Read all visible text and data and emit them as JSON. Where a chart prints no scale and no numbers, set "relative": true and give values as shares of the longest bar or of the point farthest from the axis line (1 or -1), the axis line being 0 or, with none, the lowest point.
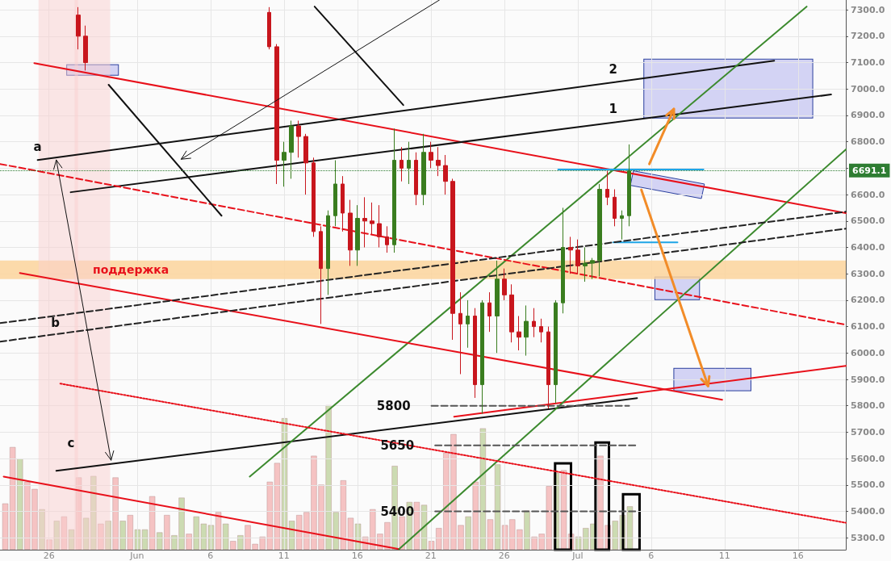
{
  "chart_data": [
    {
      "type": "candlestick",
      "x": [
        "--05-28T00:00",
        "--05-28T12:00",
        "--06-10T00:00",
        "--06-10T12:00",
        "--06-11T00:00",
        "--06-11T12:00",
        "--06-12T00:00",
        "--06-12T12:00",
        "--06-13T00:00",
        "--06-13T12:00",
        "--06-14T00:00",
        "--06-14T12:00",
        "--06-15T00:00",
        "--06-15T12:00",
        "--06-16T00:00",
        "--06-16T12:00",
        "--06-17T00:00",
        "--06-17T12:00",
        "--06-18T00:00",
        "--06-18T12:00",
        "--06-19T00:00",
        "--06-19T12:00",
        "--06-20T00:00",
        "--06-20T12:00",
        "--06-21T00:00",
        "--06-21T12:00",
        "--06-22T00:00",
        "--06-22T12:00",
        "--06-23T00:00",
        "--06-23T12:00",
        "--06-24T00:00",
        "--06-24T12:00",
        "--06-25T00:00",
        "--06-25T12:00",
        "--06-26T00:00",
        "--06-26T12:00",
        "--06-27T00:00",
        "--06-27T12:00",
        "--06-28T00:00",
        "--06-28T12:00",
        "--06-29T00:00",
        "--06-29T12:00",
        "--06-30T00:00",
        "--06-30T12:00",
        "--07-01T00:00",
        "--07-01T12:00",
        "--07-02T00:00",
        "--07-02T12:00",
        "--07-03T00:00",
        "--07-03T12:00",
        "--07-04T00:00",
        "--07-04T12:00"
      ],
      "ohlc": [
        [
          7280,
          7310,
          7150,
          7200
        ],
        [
          7200,
          7240,
          7070,
          7100
        ],
        [
          7290,
          7310,
          7150,
          7160
        ],
        [
          7160,
          7170,
          6640,
          6730
        ],
        [
          6730,
          6800,
          6630,
          6760
        ],
        [
          6760,
          6880,
          6660,
          6860
        ],
        [
          6860,
          6880,
          6740,
          6820
        ],
        [
          6820,
          6830,
          6600,
          6720
        ],
        [
          6720,
          6740,
          6440,
          6460
        ],
        [
          6460,
          6480,
          6110,
          6320
        ],
        [
          6320,
          6540,
          6220,
          6520
        ],
        [
          6520,
          6730,
          6480,
          6640
        ],
        [
          6640,
          6670,
          6460,
          6530
        ],
        [
          6530,
          6580,
          6330,
          6390
        ],
        [
          6390,
          6560,
          6330,
          6510
        ],
        [
          6510,
          6590,
          6400,
          6500
        ],
        [
          6500,
          6570,
          6450,
          6490
        ],
        [
          6490,
          6560,
          6400,
          6440
        ],
        [
          6440,
          6480,
          6380,
          6410
        ],
        [
          6410,
          6850,
          6380,
          6730
        ],
        [
          6730,
          6780,
          6650,
          6700
        ],
        [
          6700,
          6800,
          6640,
          6730
        ],
        [
          6730,
          6760,
          6560,
          6600
        ],
        [
          6600,
          6830,
          6560,
          6760
        ],
        [
          6760,
          6800,
          6700,
          6730
        ],
        [
          6730,
          6780,
          6670,
          6710
        ],
        [
          6710,
          6750,
          6600,
          6650
        ],
        [
          6650,
          6660,
          6050,
          6150
        ],
        [
          6150,
          6230,
          5920,
          6110
        ],
        [
          6110,
          6200,
          6020,
          6140
        ],
        [
          6140,
          6170,
          5830,
          5880
        ],
        [
          5880,
          6200,
          5770,
          6190
        ],
        [
          6190,
          6230,
          6080,
          6140
        ],
        [
          6140,
          6350,
          6000,
          6280
        ],
        [
          6280,
          6320,
          6200,
          6220
        ],
        [
          6220,
          6260,
          6040,
          6080
        ],
        [
          6080,
          6140,
          6010,
          6060
        ],
        [
          6060,
          6180,
          5990,
          6120
        ],
        [
          6120,
          6170,
          6060,
          6100
        ],
        [
          6100,
          6130,
          6040,
          6080
        ],
        [
          6080,
          6100,
          5790,
          5880
        ],
        [
          5880,
          6200,
          5810,
          6190
        ],
        [
          6190,
          6550,
          6150,
          6400
        ],
        [
          6400,
          6440,
          6300,
          6390
        ],
        [
          6390,
          6430,
          6300,
          6330
        ],
        [
          6330,
          6400,
          6270,
          6340
        ],
        [
          6340,
          6360,
          6280,
          6350
        ],
        [
          6350,
          6640,
          6290,
          6620
        ],
        [
          6620,
          6690,
          6560,
          6590
        ],
        [
          6590,
          6620,
          6480,
          6510
        ],
        [
          6510,
          6540,
          6430,
          6520
        ],
        [
          6520,
          6790,
          6480,
          6690
        ]
      ],
      "colors": [
        "#c8161d",
        "#c8161d",
        "#c8161d",
        "#c8161d",
        "#3a7d1f",
        "#3a7d1f",
        "#c8161d",
        "#c8161d",
        "#c8161d",
        "#c8161d",
        "#3a7d1f",
        "#3a7d1f",
        "#c8161d",
        "#c8161d",
        "#3a7d1f",
        "#c8161d",
        "#c8161d",
        "#c8161d",
        "#c8161d",
        "#3a7d1f",
        "#c8161d",
        "#3a7d1f",
        "#c8161d",
        "#3a7d1f",
        "#c8161d",
        "#c8161d",
        "#c8161d",
        "#c8161d",
        "#c8161d",
        "#3a7d1f",
        "#c8161d",
        "#3a7d1f",
        "#c8161d",
        "#3a7d1f",
        "#c8161d",
        "#c8161d",
        "#c8161d",
        "#3a7d1f",
        "#c8161d",
        "#c8161d",
        "#c8161d",
        "#3a7d1f",
        "#3a7d1f",
        "#c8161d",
        "#c8161d",
        "#3a7d1f",
        "#3a7d1f",
        "#3a7d1f",
        "#c8161d",
        "#c8161d",
        "#3a7d1f",
        "#3a7d1f"
      ],
      "series": [
        {
          "type": "line",
          "x": [
            "--05-25T00:00",
            "--07-19T06:00"
          ],
          "values": [
            7098,
            6530
          ],
          "color": "#e8101a",
          "line_style": "solid"
        },
        {
          "type": "line",
          "x": [
            "--05-22T22:00",
            "--06-18T20:00"
          ],
          "values": [
            5532,
            5257
          ],
          "color": "#e8101a",
          "line_style": "solid"
        },
        {
          "type": "line",
          "x": [
            "--06-22T14:00",
            "--07-19T06:00"
          ],
          "values": [
            5759,
            5951
          ],
          "color": "#e8101a",
          "line_style": "solid"
        },
        {
          "type": "line",
          "x": [
            "--05-26T12:00",
            "--07-05T01:00"
          ],
          "values": [
            5554,
            5829
          ],
          "color": "#111111",
          "line_style": "solid"
        },
        {
          "type": "line",
          "x": [
            "--05-25T05:30",
            "--07-14T09:00"
          ],
          "values": [
            6731,
            7107
          ],
          "color": "#111111",
          "line_style": "solid"
        },
        {
          "type": "line",
          "x": [
            "--05-27T11:30",
            "--07-18T06:00"
          ],
          "values": [
            6609,
            6979
          ],
          "color": "#111111",
          "line_style": "solid"
        },
        {
          "type": "line",
          "x": [
            "--06-08T16:00",
            "--07-16T14:00"
          ],
          "values": [
            5532,
            7312
          ],
          "color": "#3c8a2e",
          "line_style": "solid"
        },
        {
          "type": "line",
          "x": [
            "--06-18T20:00",
            "--07-19T06:00"
          ],
          "values": [
            5257,
            6771
          ],
          "color": "#3c8a2e",
          "line_style": "solid"
        },
        {
          "type": "line",
          "x": [
            "--06-29T16:00",
            "--07-09T13:30"
          ],
          "values": [
            6695,
            6695
          ],
          "color": "#1ea5e6",
          "line_style": "solid"
        },
        {
          "type": "line",
          "x": [
            "--07-03T10:00",
            "--07-07T19:00"
          ],
          "values": [
            6419,
            6419
          ],
          "color": "#1ea5e6",
          "line_style": "solid"
        },
        {
          "type": "line",
          "x": [
            "--06-21T01:00",
            "--07-04T12:00"
          ],
          "values": [
            5800,
            5800
          ],
          "color": "#555555",
          "line_style": "dashed"
        },
        {
          "type": "line",
          "x": [
            "--06-21T07:00",
            "--07-05T01:00"
          ],
          "values": [
            5650,
            5650
          ],
          "color": "#555555",
          "line_style": "dashed"
        },
        {
          "type": "line",
          "x": [
            "--06-21T07:00",
            "--07-05T01:00"
          ],
          "values": [
            5400,
            5400
          ],
          "color": "#555555",
          "line_style": "dashed"
        },
        {
          "type": "line",
          "x": [
            "--05-22T16:00",
            "--07-19T06:00"
          ],
          "values": [
            6716,
            6107
          ],
          "color": "#e8101a",
          "line_style": "dashed"
        },
        {
          "type": "line",
          "x": [
            "--05-24T00:30",
            "--07-10T20:00"
          ],
          "values": [
            6303,
            5823
          ],
          "color": "#e8101a",
          "line_style": "solid"
        },
        {
          "type": "line",
          "x": [
            "--05-22T16:00",
            "--07-19T06:00"
          ],
          "values": [
            6113,
            6535
          ],
          "color": "#222222",
          "line_style": "dashed"
        },
        {
          "type": "line",
          "x": [
            "--05-22T16:00",
            "--07-19T06:00"
          ],
          "values": [
            6043,
            6471
          ],
          "color": "#222222",
          "line_style": "dashed"
        },
        {
          "type": "line",
          "x": [
            "--05-26T18:30",
            "--07-19T06:00"
          ],
          "values": [
            5884,
            5357
          ],
          "color": "#e8101a",
          "line_style": "dotted"
        },
        {
          "type": "line",
          "x": [
            "--05-30T01:30",
            "--06-06T18:00"
          ],
          "values": [
            7016,
            6520
          ],
          "color": "#111111",
          "line_style": "solid"
        },
        {
          "type": "line",
          "x": [
            "--06-13T02:00",
            "--06-19T03:00"
          ],
          "values": [
            7312,
            6939
          ],
          "color": "#111111",
          "line_style": "solid"
        }
      ],
      "xlim": [
        "--05-22T16:00",
        "--07-19T06:00"
      ],
      "xticks": [
        {
          "value": "--05-26",
          "label": "26"
        },
        {
          "value": "--06-01",
          "label": "Jun"
        },
        {
          "value": "--06-06",
          "label": "6"
        },
        {
          "value": "--06-11",
          "label": "11"
        },
        {
          "value": "--06-16",
          "label": "16"
        },
        {
          "value": "--06-21",
          "label": "21"
        },
        {
          "value": "--06-26",
          "label": "26"
        },
        {
          "value": "--07-01",
          "label": "Jul"
        },
        {
          "value": "--07-06",
          "label": "6"
        },
        {
          "value": "--07-11",
          "label": "11"
        },
        {
          "value": "--07-16",
          "label": "16"
        }
      ],
      "ylim": [
        5255,
        7337
      ],
      "yticks": [
        {
          "value": 5300,
          "label": "5300.0"
        },
        {
          "value": 5400,
          "label": "5400.0"
        },
        {
          "value": 5500,
          "label": "5500.0"
        },
        {
          "value": 5600,
          "label": "5600.0"
        },
        {
          "value": 5700,
          "label": "5700.0"
        },
        {
          "value": 5800,
          "label": "5800.0"
        },
        {
          "value": 5900,
          "label": "5900.0"
        },
        {
          "value": 6000,
          "label": "6000.0"
        },
        {
          "value": 6100,
          "label": "6100.0"
        },
        {
          "value": 6200,
          "label": "6200.0"
        },
        {
          "value": 6300,
          "label": "6300.0"
        },
        {
          "value": 6400,
          "label": "6400.0"
        },
        {
          "value": 6500,
          "label": "6500.0"
        },
        {
          "value": 6600,
          "label": "6600.0"
        },
        {
          "value": 6700,
          "label": null
        },
        {
          "value": 6800,
          "label": "6800.0"
        },
        {
          "value": 6900,
          "label": "6900.0"
        },
        {
          "value": 7000,
          "label": "7000.0"
        },
        {
          "value": 7100,
          "label": "7100.0"
        },
        {
          "value": 7200,
          "label": "7200.0"
        },
        {
          "value": 7300,
          "label": "7300.0"
        }
      ],
      "ref_lines": [
        {
          "axis": "y",
          "value": 6691.1,
          "label": "6691.1",
          "color": "#2e7d32",
          "line_style": "dotted"
        }
      ],
      "bands": [
        {
          "axis": "y",
          "from": 6280,
          "to": 6350,
          "label": "поддержка",
          "color": "#fbd39b"
        },
        {
          "axis": "x",
          "from": "--05-25T07:00",
          "to": "--05-27T23:30",
          "label": null,
          "color": "#f9d0d0"
        },
        {
          "axis": "x",
          "from": "--05-27T18:00",
          "to": "--05-30T04:00",
          "label": null,
          "color": "#f9d0d0"
        }
      ],
      "annotations": [
        {
          "text": "a",
          "x": "--05-25T05:30",
          "y": 6731
        },
        "b",
        {
          "text": "c",
          "x": "--05-27T12:00",
          "y": 5609
        },
        {
          "text": "1",
          "x": "--07-03T10:00",
          "y": 6873
        },
        {
          "text": "2",
          "x": "--07-03T10:00",
          "y": 7025
        },
        {
          "text": "5800",
          "x": "--06-21T01:00",
          "y": 5800
        },
        {
          "text": "5650",
          "x": "--06-21T07:00",
          "y": 5650
        },
        {
          "text": "5400",
          "x": "--06-21T07:00",
          "y": 5400
        }
      ],
      "grid": true,
      "marker": "none"
    },
    {
      "type": "bar",
      "relative": true,
      "categories": [
        null,
        null,
        null,
        null,
        null,
        null,
        null,
        null,
        null,
        null,
        null,
        null,
        null,
        null,
        null,
        null,
        null,
        null,
        null,
        null,
        null,
        null,
        null,
        null,
        null,
        null,
        null,
        null,
        null,
        null,
        null,
        null,
        null,
        null,
        null,
        null,
        null,
        null,
        null,
        null,
        null,
        null,
        null,
        null,
        null,
        null,
        null,
        null,
        null,
        null,
        null,
        null,
        null,
        null,
        null,
        null,
        null,
        null,
        null,
        null,
        null,
        null,
        null,
        null,
        null,
        null,
        null,
        null,
        null,
        null,
        null,
        null,
        null,
        null,
        null,
        null,
        null,
        null,
        null,
        null,
        null,
        null,
        null,
        null,
        null,
        null
      ],
      "values": [
        0.32,
        0.71,
        0.63,
        0.47,
        0.42,
        0.28,
        0.07,
        0.2,
        0.23,
        0.14,
        0.5,
        0.22,
        0.51,
        0.18,
        0.2,
        0.5,
        0.2,
        0.24,
        0.14,
        0.14,
        0.37,
        0.12,
        0.24,
        0.1,
        0.36,
        0.11,
        0.23,
        0.18,
        0.17,
        0.26,
        0.18,
        0.06,
        0.1,
        0.17,
        0.04,
        0.09,
        0.47,
        0.6,
        0.91,
        0.2,
        0.24,
        0.26,
        0.65,
        0.45,
        1,
        0.26,
        0.48,
        0.22,
        0.18,
        0.09,
        0.28,
        0.11,
        0.19,
        0.58,
        0.23,
        0.33,
        0.33,
        0.31,
        0.06,
        0.15,
        0.67,
        0.8,
        0.17,
        0.23,
        0.47,
        0.84,
        0.21,
        0.59,
        0.17,
        0.21,
        0.14,
        0.27,
        0.09,
        0.11,
        0.44,
        0.53,
        0.55,
        0.11,
        0.09,
        0.15,
        0.18,
        0.65,
        0.17,
        0.2,
        0.24,
        0.3
      ],
      "colors": [
        "#f3b9b9",
        "#f3b9b9",
        "#c3d5a4",
        "#f3b9b9",
        "#f3b9b9",
        "#c3d5a4",
        "#f3b9b9",
        "#c3d5a4",
        "#f3b9b9",
        "#c3d5a4",
        "#f3b9b9",
        "#c3d5a4",
        "#c3d5a4",
        "#f3b9b9",
        "#c3d5a4",
        "#f3b9b9",
        "#c3d5a4",
        "#f3b9b9",
        "#c3d5a4",
        "#c3d5a4",
        "#f3b9b9",
        "#c3d5a4",
        "#f3b9b9",
        "#c3d5a4",
        "#c3d5a4",
        "#f3b9b9",
        "#c3d5a4",
        "#c3d5a4",
        "#c3d5a4",
        "#f3b9b9",
        "#c3d5a4",
        "#f3b9b9",
        "#c3d5a4",
        "#f3b9b9",
        "#f3b9b9",
        "#f3b9b9",
        "#f3b9b9",
        "#f3b9b9",
        "#c3d5a4",
        "#c3d5a4",
        "#f3b9b9",
        "#f3b9b9",
        "#f3b9b9",
        "#f3b9b9",
        "#c3d5a4",
        "#c3d5a4",
        "#f3b9b9",
        "#f3b9b9",
        "#c3d5a4",
        "#f3b9b9",
        "#f3b9b9",
        "#f3b9b9",
        "#f3b9b9",
        "#c3d5a4",
        "#f3b9b9",
        "#c3d5a4",
        "#f3b9b9",
        "#c3d5a4",
        "#f3b9b9",
        "#f3b9b9",
        "#f3b9b9",
        "#f3b9b9",
        "#f3b9b9",
        "#c3d5a4",
        "#f3b9b9",
        "#c3d5a4",
        "#f3b9b9",
        "#c3d5a4",
        "#f3b9b9",
        "#f3b9b9",
        "#f3b9b9",
        "#c3d5a4",
        "#f3b9b9",
        "#f3b9b9",
        "#f3b9b9",
        "#c3d5a4",
        "#f3b9b9",
        "#f3b9b9",
        "#c3d5a4",
        "#c3d5a4",
        "#c3d5a4",
        "#f3b9b9",
        "#f3b9b9",
        "#c3d5a4",
        "#c3d5a4",
        "#c3d5a4"
      ]
    }
  ]
}
